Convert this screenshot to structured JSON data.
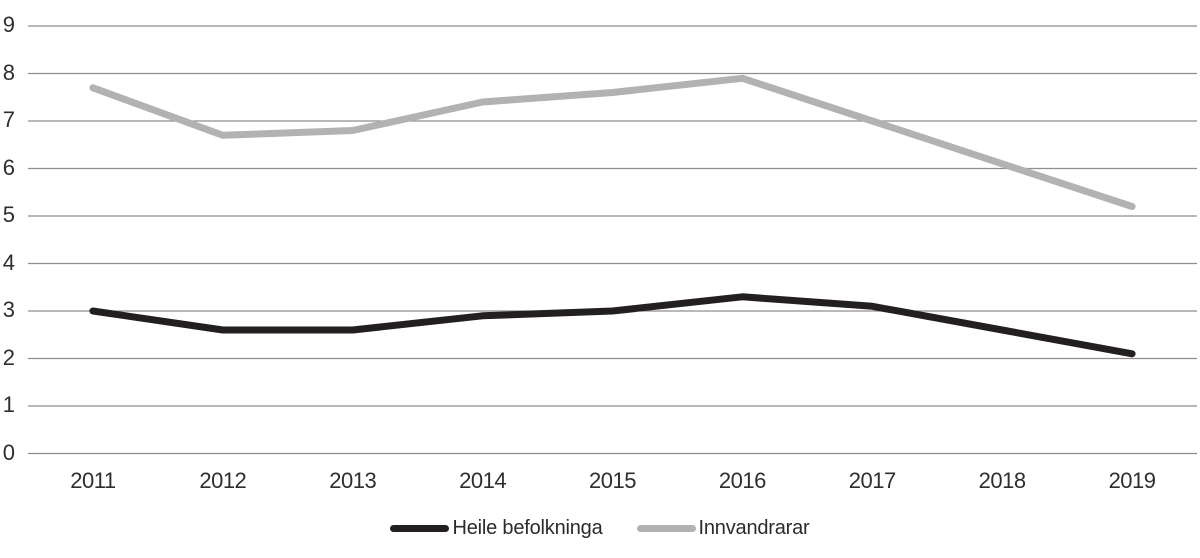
{
  "chart_data": {
    "type": "line",
    "categories": [
      "2011",
      "2012",
      "2013",
      "2014",
      "2015",
      "2016",
      "2017",
      "2018",
      "2019"
    ],
    "series": [
      {
        "name": "Heile befolkninga",
        "color": "#231f20",
        "values": [
          3.0,
          2.6,
          2.6,
          2.9,
          3.0,
          3.3,
          3.1,
          2.6,
          2.1
        ]
      },
      {
        "name": "Innvandrarar",
        "color": "#b2b2b2",
        "values": [
          7.7,
          6.7,
          6.8,
          7.4,
          7.6,
          7.9,
          7.0,
          6.1,
          5.2
        ]
      }
    ],
    "title": "",
    "xlabel": "",
    "ylabel": "",
    "ylim": [
      0,
      9
    ],
    "y_ticks": [
      0,
      1,
      2,
      3,
      4,
      5,
      6,
      7,
      8,
      9
    ],
    "grid": "horizontal",
    "legend_position": "bottom-center"
  },
  "colors": {
    "background": "#ffffff",
    "gridline": "#8e8e8e",
    "axis_text": "#2e2e2e"
  }
}
